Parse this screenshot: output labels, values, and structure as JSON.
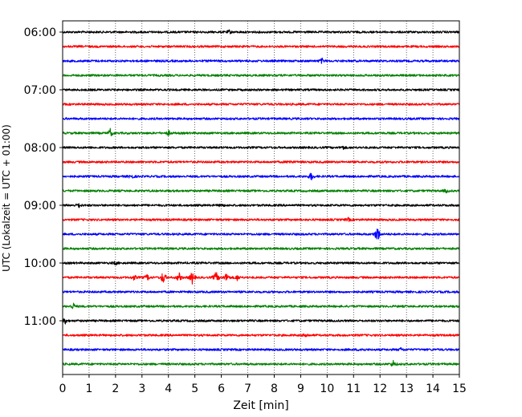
{
  "chart_data": {
    "type": "line",
    "title": "",
    "xlabel": "Zeit  [min]",
    "ylabel": "UTC (Lokalzeit = UTC + 01:00)",
    "xlim": [
      0,
      15
    ],
    "x_ticks": [
      "0",
      "1",
      "2",
      "3",
      "4",
      "5",
      "6",
      "7",
      "8",
      "9",
      "10",
      "11",
      "12",
      "13",
      "14",
      "15"
    ],
    "y_ticks": [
      "06:00",
      "07:00",
      "08:00",
      "09:00",
      "10:00",
      "11:00"
    ],
    "grid": "vertical dotted",
    "legend": "none",
    "trace_colors": [
      "#000000",
      "#ff0000",
      "#0000ff",
      "#008000"
    ],
    "trace_interval_min": 15,
    "traces": [
      {
        "start": "06:00",
        "color": "#000000",
        "events": [
          {
            "t": 6.3,
            "amp": 2
          }
        ]
      },
      {
        "start": "06:15",
        "color": "#ff0000",
        "events": []
      },
      {
        "start": "06:30",
        "color": "#0000ff",
        "events": [
          {
            "t": 9.8,
            "amp": 3
          }
        ]
      },
      {
        "start": "06:45",
        "color": "#008000",
        "events": []
      },
      {
        "start": "07:00",
        "color": "#000000",
        "events": []
      },
      {
        "start": "07:15",
        "color": "#ff0000",
        "events": []
      },
      {
        "start": "07:30",
        "color": "#0000ff",
        "events": []
      },
      {
        "start": "07:45",
        "color": "#008000",
        "events": [
          {
            "t": 1.8,
            "amp": 5
          },
          {
            "t": 4.0,
            "amp": 3
          }
        ]
      },
      {
        "start": "08:00",
        "color": "#000000",
        "events": [
          {
            "t": 10.6,
            "amp": 2
          }
        ]
      },
      {
        "start": "08:15",
        "color": "#ff0000",
        "events": [
          {
            "t": 8.6,
            "amp": 2
          }
        ]
      },
      {
        "start": "08:30",
        "color": "#0000ff",
        "events": [
          {
            "t": 2.6,
            "amp": 3
          },
          {
            "t": 9.4,
            "amp": 5
          }
        ]
      },
      {
        "start": "08:45",
        "color": "#008000",
        "events": [
          {
            "t": 14.5,
            "amp": 2
          }
        ]
      },
      {
        "start": "09:00",
        "color": "#000000",
        "events": [
          {
            "t": 0.6,
            "amp": 3
          },
          {
            "t": 6.0,
            "amp": 2
          }
        ]
      },
      {
        "start": "09:15",
        "color": "#ff0000",
        "events": [
          {
            "t": 10.8,
            "amp": 2
          }
        ]
      },
      {
        "start": "09:30",
        "color": "#0000ff",
        "events": [
          {
            "t": 11.9,
            "amp": 12
          }
        ]
      },
      {
        "start": "09:45",
        "color": "#008000",
        "events": []
      },
      {
        "start": "10:00",
        "color": "#000000",
        "events": [
          {
            "t": 2.0,
            "amp": 2
          }
        ]
      },
      {
        "start": "10:15",
        "color": "#ff0000",
        "events": [
          {
            "t": 2.7,
            "amp": 3
          },
          {
            "t": 3.2,
            "amp": 4
          },
          {
            "t": 3.8,
            "amp": 9
          },
          {
            "t": 4.4,
            "amp": 6
          },
          {
            "t": 4.9,
            "amp": 8
          },
          {
            "t": 5.8,
            "amp": 8
          },
          {
            "t": 6.2,
            "amp": 6
          },
          {
            "t": 6.6,
            "amp": 3
          }
        ]
      },
      {
        "start": "10:30",
        "color": "#0000ff",
        "events": []
      },
      {
        "start": "10:45",
        "color": "#008000",
        "events": [
          {
            "t": 0.4,
            "amp": 4
          }
        ]
      },
      {
        "start": "11:00",
        "color": "#000000",
        "events": [
          {
            "t": 0.1,
            "amp": 3
          }
        ]
      },
      {
        "start": "11:15",
        "color": "#ff0000",
        "events": [
          {
            "t": 9.2,
            "amp": 3
          }
        ]
      },
      {
        "start": "11:30",
        "color": "#0000ff",
        "events": [
          {
            "t": 11.3,
            "amp": 2
          },
          {
            "t": 12.8,
            "amp": 2
          }
        ]
      },
      {
        "start": "11:45",
        "color": "#008000",
        "events": [
          {
            "t": 12.5,
            "amp": 4
          }
        ]
      }
    ]
  }
}
